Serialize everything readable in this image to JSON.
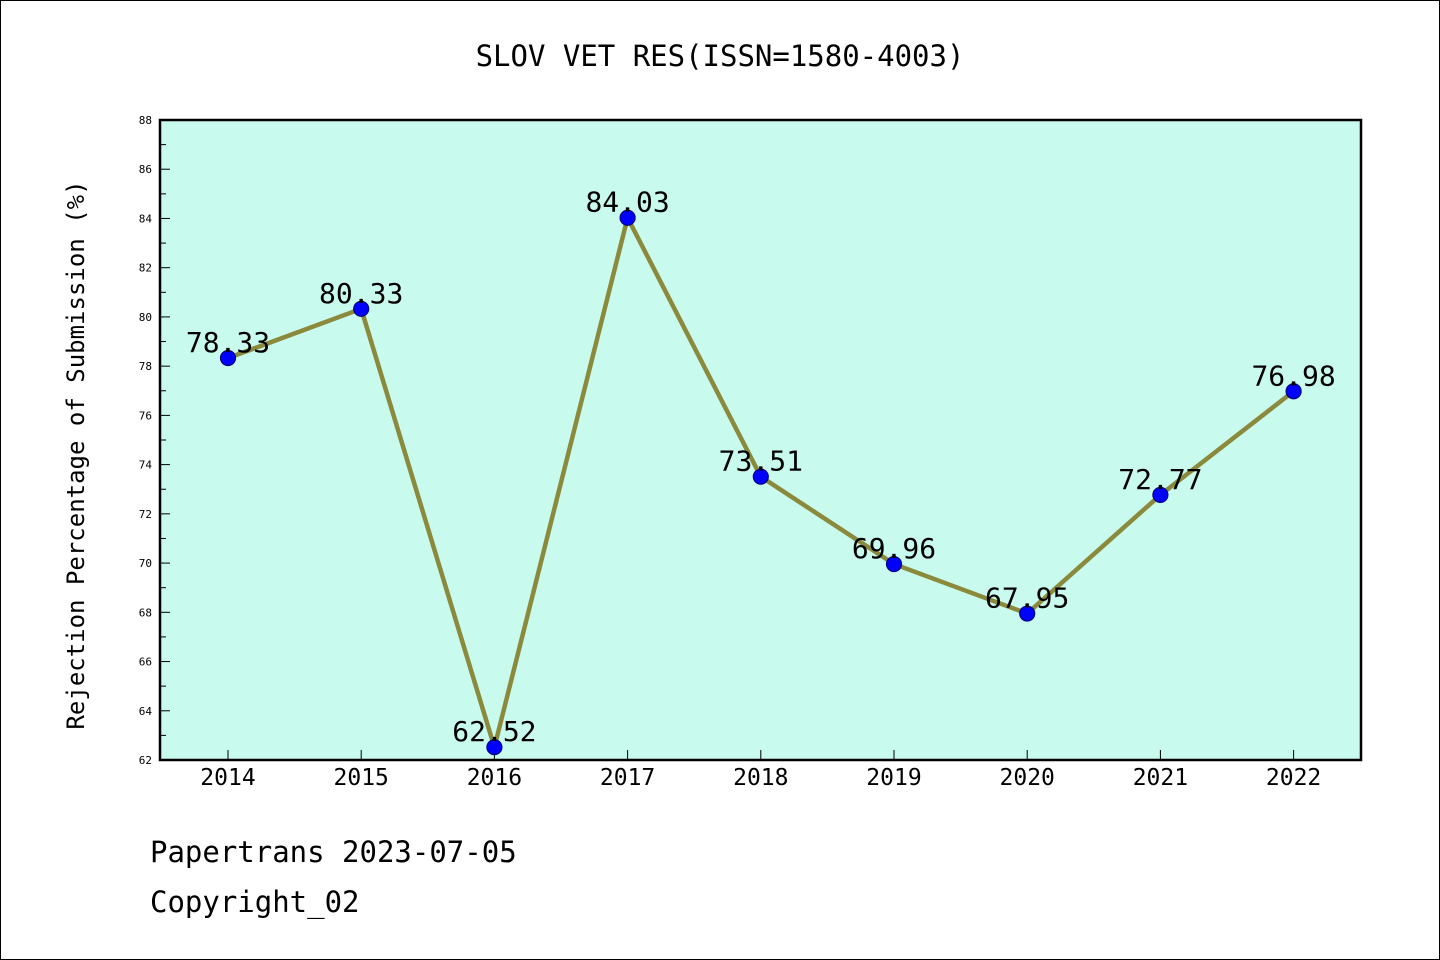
{
  "colors": {
    "plot_background": "#c8fbee",
    "line": "#8b8a3c",
    "marker_fill": "#0000ff",
    "marker_stroke": "#000080",
    "axis": "#000000",
    "text": "#000000"
  },
  "footer": {
    "line1": "Papertrans 2023-07-05",
    "line2": "Copyright_02"
  },
  "chart_data": {
    "type": "line",
    "title": "SLOV VET RES(ISSN=1580-4003)",
    "xlabel": "",
    "ylabel": "Rejection Percentage of Submission (%)",
    "categories": [
      "2014",
      "2015",
      "2016",
      "2017",
      "2018",
      "2019",
      "2020",
      "2021",
      "2022"
    ],
    "series": [
      {
        "values": [
          78.33,
          80.33,
          62.52,
          84.03,
          73.51,
          69.96,
          67.95,
          72.77,
          76.98
        ],
        "data_labels": [
          "78.33",
          "80.33",
          "62.52",
          "84.03",
          "73.51",
          "69.96",
          "67.95",
          "72.77",
          "76.98"
        ]
      }
    ],
    "ylim": [
      62,
      88
    ],
    "yticks": [
      "62",
      "64",
      "66",
      "68",
      "70",
      "72",
      "74",
      "76",
      "78",
      "80",
      "82",
      "84",
      "86",
      "88"
    ],
    "grid": false,
    "legend": "none"
  }
}
